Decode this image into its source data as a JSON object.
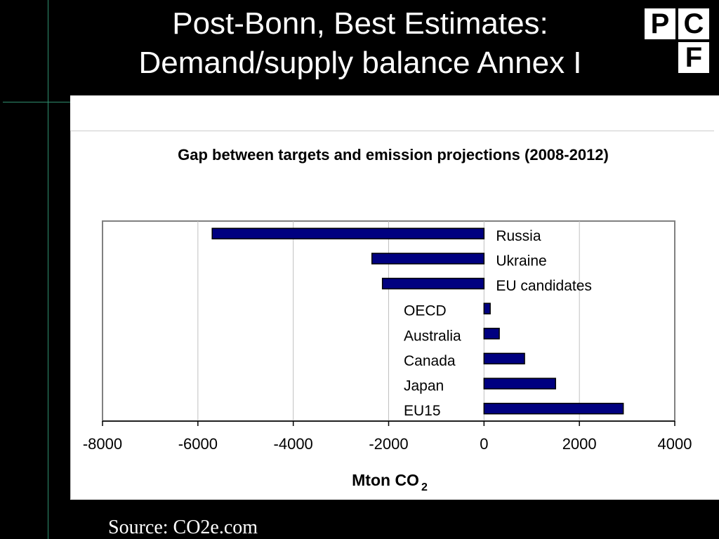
{
  "slide": {
    "title_line1": "Post-Bonn, Best Estimates:",
    "title_line2": "Demand/supply balance Annex I",
    "source": "Source: CO2e.com"
  },
  "logo": {
    "letters": [
      "P",
      "C",
      "F"
    ]
  },
  "colors": {
    "background": "#000000",
    "panel": "#ffffff",
    "bar_fill": "#000080",
    "gridline": "#c0c0c0",
    "guide": "#2f8f6f"
  },
  "chart_data": {
    "type": "bar",
    "orientation": "horizontal",
    "title": "Gap between targets and emission projections (2008-2012)",
    "xlabel_main": "Mton CO",
    "xlabel_sub": "2",
    "xlim": [
      -8000,
      4000
    ],
    "xticks": [
      "-8000",
      "-6000",
      "-4000",
      "-2000",
      "0",
      "2000",
      "4000"
    ],
    "grid": true,
    "categories": [
      "Russia",
      "Ukraine",
      "EU candidates",
      "OECD",
      "Australia",
      "Canada",
      "Japan",
      "EU15"
    ],
    "values": [
      -5700,
      -2350,
      -2130,
      130,
      320,
      850,
      1500,
      2920
    ]
  }
}
